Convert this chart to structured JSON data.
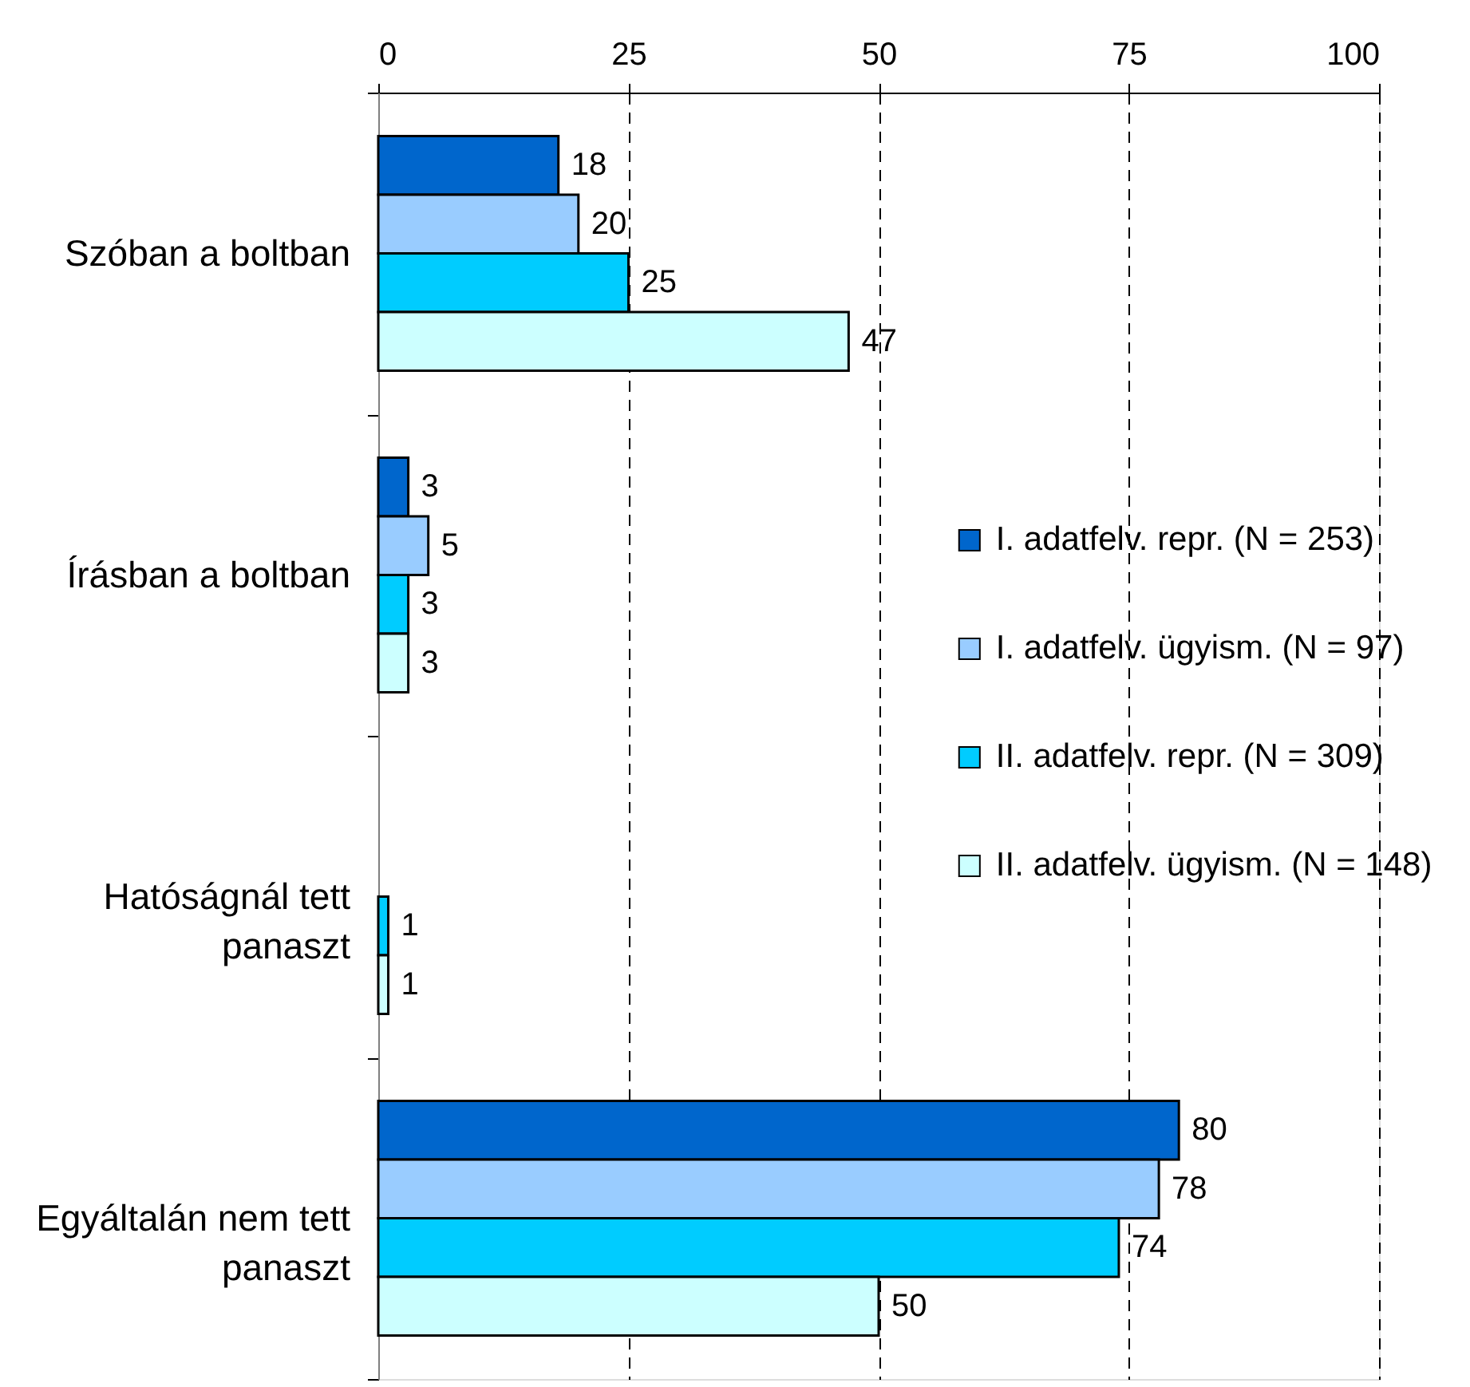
{
  "chart_data": {
    "type": "bar",
    "orientation": "horizontal",
    "categories": [
      "Szóban a boltban",
      "Írásban a boltban",
      "Hatóságnál tett panaszt",
      "Egyáltalán nem tett panaszt"
    ],
    "series": [
      {
        "name": "I. adatfelv. repr. (N = 253)",
        "color": "#0066cc",
        "values": [
          18,
          3,
          null,
          80
        ]
      },
      {
        "name": "I. adatfelv. ügyism. (N = 97)",
        "color": "#99ccff",
        "values": [
          20,
          5,
          null,
          78
        ]
      },
      {
        "name": "II. adatfelv. repr. (N = 309)",
        "color": "#00ccff",
        "values": [
          25,
          3,
          1,
          74
        ]
      },
      {
        "name": "II. adatfelv. ügyism. (N = 148)",
        "color": "#ccffff",
        "values": [
          47,
          3,
          1,
          50
        ]
      }
    ],
    "xlim": [
      0,
      100
    ],
    "xticks": [
      0,
      25,
      50,
      75,
      100
    ],
    "grid": "x",
    "legend": "right",
    "data_labels": true
  }
}
